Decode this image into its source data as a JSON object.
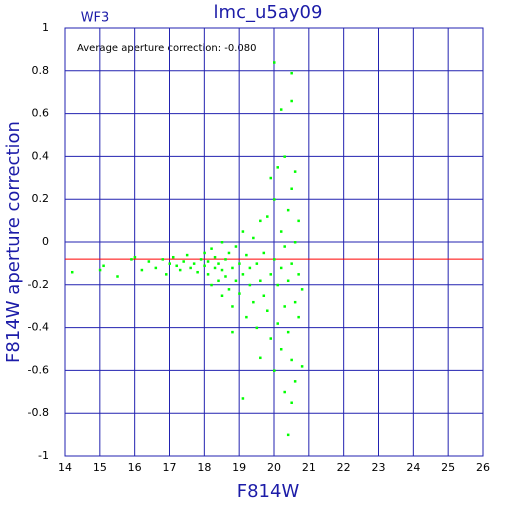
{
  "chart_data": {
    "type": "scatter",
    "title": "lmc_u5ay09",
    "subtitle": "WF3",
    "annotation": "Average aperture correction: -0.080",
    "hline": -0.08,
    "x_label": "F814W",
    "y_label": "F814W aperture correction",
    "grid": true,
    "grid_color": "#2222b0",
    "line_color": "#ff0000",
    "xlim": [
      14,
      26
    ],
    "ylim": [
      -1,
      1
    ],
    "xticks": [
      14,
      15,
      16,
      17,
      18,
      19,
      20,
      21,
      22,
      23,
      24,
      25,
      26
    ],
    "yticks": [
      -1,
      -0.8,
      -0.6,
      -0.4,
      -0.2,
      0,
      0.2,
      0.4,
      0.6,
      0.8,
      1
    ],
    "series": [
      {
        "color": "#00ff00",
        "x": [
          14.2,
          15.0,
          15.1,
          15.5,
          15.9,
          16.0,
          16.2,
          16.4,
          16.6,
          16.8,
          16.9,
          17.0,
          17.1,
          17.2,
          17.3,
          17.4,
          17.5,
          17.6,
          17.7,
          17.8,
          17.9,
          18.0,
          18.0,
          18.1,
          18.1,
          18.2,
          18.2,
          18.3,
          18.3,
          18.4,
          18.4,
          18.5,
          18.5,
          18.5,
          18.6,
          18.6,
          18.7,
          18.7,
          18.8,
          18.8,
          18.9,
          18.9,
          19.0,
          19.0,
          19.1,
          19.1,
          19.2,
          19.2,
          19.3,
          19.3,
          19.4,
          19.4,
          19.5,
          19.5,
          19.6,
          19.6,
          19.6,
          19.7,
          19.7,
          19.8,
          19.8,
          19.9,
          19.9,
          19.9,
          20.0,
          20.0,
          20.0,
          20.1,
          20.1,
          20.1,
          20.2,
          20.2,
          20.2,
          20.2,
          20.3,
          20.3,
          20.3,
          20.3,
          20.4,
          20.4,
          20.4,
          20.4,
          20.5,
          20.5,
          20.5,
          20.5,
          20.5,
          20.6,
          20.6,
          20.6,
          20.6,
          20.7,
          20.7,
          20.7,
          20.8,
          20.8,
          20.5,
          20.0,
          19.1,
          18.8
        ],
        "values": [
          -0.14,
          -0.13,
          -0.11,
          -0.16,
          -0.08,
          -0.07,
          -0.13,
          -0.09,
          -0.12,
          -0.08,
          -0.15,
          -0.1,
          -0.07,
          -0.11,
          -0.13,
          -0.09,
          -0.06,
          -0.12,
          -0.1,
          -0.14,
          -0.08,
          -0.11,
          -0.05,
          -0.15,
          -0.09,
          -0.2,
          -0.03,
          -0.12,
          -0.07,
          -0.18,
          -0.1,
          -0.25,
          -0.13,
          0.0,
          -0.08,
          -0.16,
          -0.22,
          -0.05,
          -0.12,
          -0.3,
          -0.18,
          -0.02,
          -0.1,
          -0.24,
          -0.15,
          0.05,
          -0.35,
          -0.06,
          -0.2,
          -0.12,
          -0.28,
          0.02,
          -0.4,
          -0.1,
          -0.18,
          0.1,
          -0.54,
          -0.25,
          -0.05,
          -0.32,
          0.12,
          -0.15,
          -0.45,
          0.3,
          0.2,
          -0.08,
          -0.6,
          0.35,
          -0.2,
          -0.38,
          0.05,
          -0.12,
          -0.5,
          0.62,
          0.4,
          -0.3,
          -0.02,
          -0.7,
          0.15,
          -0.18,
          -0.42,
          -0.9,
          0.79,
          0.25,
          -0.1,
          -0.55,
          -0.75,
          0.0,
          -0.28,
          -0.65,
          0.33,
          -0.35,
          -0.15,
          0.1,
          -0.58,
          -0.22,
          0.66,
          0.84,
          -0.73,
          -0.42
        ]
      }
    ]
  }
}
